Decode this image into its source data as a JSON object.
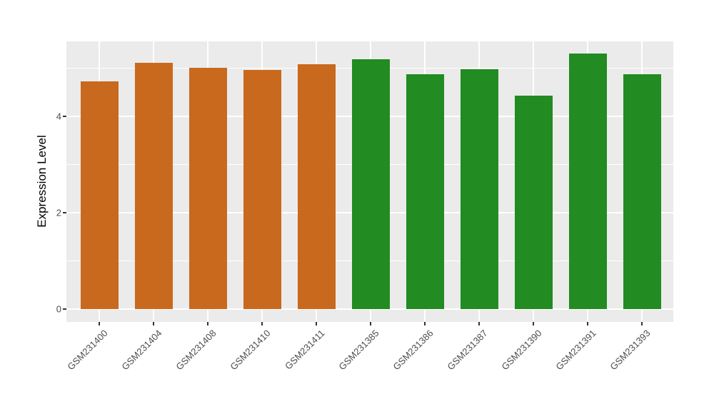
{
  "figure": {
    "background": "#FFFFFF"
  },
  "y_axis": {
    "title": "Expression Level",
    "ticks": [
      {
        "label": "0",
        "value": 0
      },
      {
        "label": "2",
        "value": 2
      },
      {
        "label": "4",
        "value": 4
      }
    ]
  },
  "chart_data": {
    "type": "bar",
    "title": "",
    "xlabel": "",
    "ylabel": "Expression Level",
    "categories": [
      "GSM231400",
      "GSM231404",
      "GSM231408",
      "GSM231410",
      "GSM231411",
      "GSM231385",
      "GSM231386",
      "GSM231387",
      "GSM231390",
      "GSM231391",
      "GSM231393"
    ],
    "values": [
      4.73,
      5.11,
      5.01,
      4.96,
      5.08,
      5.19,
      4.87,
      4.98,
      4.43,
      5.3,
      4.87
    ],
    "bar_colors": [
      "#C8691E",
      "#C8691E",
      "#C8691E",
      "#C8691E",
      "#C8691E",
      "#228B22",
      "#228B22",
      "#228B22",
      "#228B22",
      "#228B22",
      "#228B22"
    ],
    "color_groups": [
      {
        "color": "#C8691E",
        "samples": [
          "GSM231400",
          "GSM231404",
          "GSM231408",
          "GSM231410",
          "GSM231411"
        ]
      },
      {
        "color": "#228B22",
        "samples": [
          "GSM231385",
          "GSM231386",
          "GSM231387",
          "GSM231390",
          "GSM231391",
          "GSM231393"
        ]
      }
    ],
    "ylim": [
      -0.27,
      5.56
    ],
    "y_major_gridlines": [
      0,
      2,
      4
    ],
    "y_minor_gridlines": [
      1,
      3,
      5
    ],
    "grid": true,
    "legend": "none",
    "panel_background": "#EBEBEB",
    "gridline_color": "#FFFFFF",
    "x_tick_angle": 45
  }
}
